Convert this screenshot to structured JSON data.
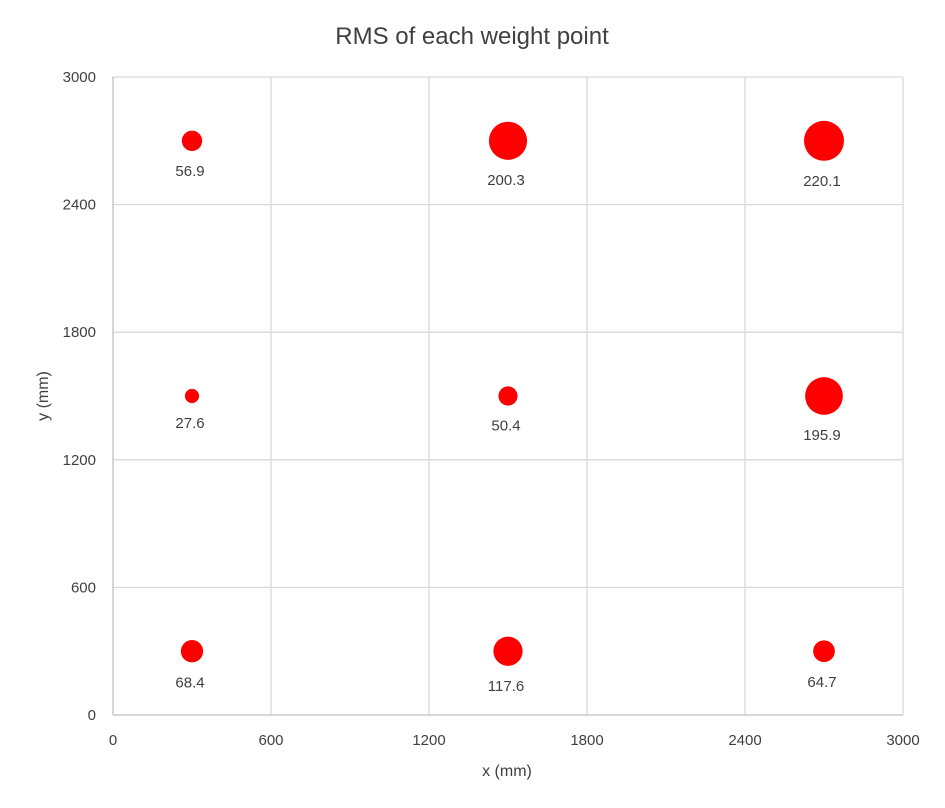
{
  "chart_data": {
    "type": "scatter",
    "subtype": "bubble",
    "title": "RMS of each weight point",
    "xlabel": "x (mm)",
    "ylabel": "y (mm)",
    "xlim": [
      0,
      3000
    ],
    "ylim": [
      0,
      3000
    ],
    "xticks": [
      "0",
      "600",
      "1200",
      "1800",
      "2400",
      "3000"
    ],
    "yticks": [
      "0",
      "600",
      "1200",
      "1800",
      "2400",
      "3000"
    ],
    "grid": true,
    "color": "#ff0000",
    "points": [
      {
        "x": 300,
        "y": 2700,
        "size": 56.9,
        "label": "56.9"
      },
      {
        "x": 1500,
        "y": 2700,
        "size": 200.3,
        "label": "200.3"
      },
      {
        "x": 2700,
        "y": 2700,
        "size": 220.1,
        "label": "220.1"
      },
      {
        "x": 300,
        "y": 1500,
        "size": 27.6,
        "label": "27.6"
      },
      {
        "x": 1500,
        "y": 1500,
        "size": 50.4,
        "label": "50.4"
      },
      {
        "x": 2700,
        "y": 1500,
        "size": 195.9,
        "label": "195.9"
      },
      {
        "x": 300,
        "y": 300,
        "size": 68.4,
        "label": "68.4"
      },
      {
        "x": 1500,
        "y": 300,
        "size": 117.6,
        "label": "117.6"
      },
      {
        "x": 2700,
        "y": 300,
        "size": 64.7,
        "label": "64.7"
      }
    ]
  }
}
